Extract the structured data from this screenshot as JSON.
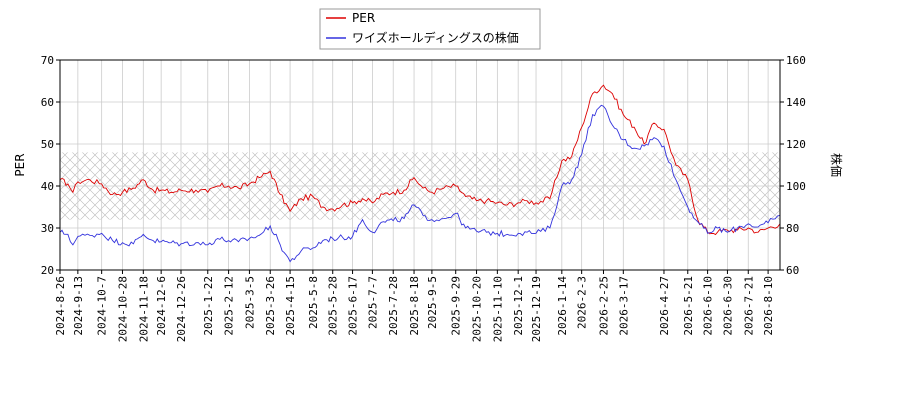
{
  "chart_data": {
    "type": "line",
    "legend": {
      "placement": "top-center",
      "entries": [
        {
          "name": "PER",
          "color": "#dd0000"
        },
        {
          "name": "ワイズホールディングスの株価",
          "color": "#3333dd"
        }
      ]
    },
    "ylabel_left": "PER",
    "ylabel_right": "株価",
    "ylim_left": [
      20,
      70
    ],
    "ylim_right": [
      60,
      160
    ],
    "yticks_left": [
      20,
      30,
      40,
      50,
      60,
      70
    ],
    "yticks_right": [
      60,
      80,
      100,
      120,
      140,
      160
    ],
    "grid": true,
    "band": {
      "axis": "left",
      "range": [
        32,
        48
      ],
      "pattern": "crosshatch"
    },
    "xlim": [
      "2024-08-26",
      "2026-08-22"
    ],
    "xticks": [
      "2024-8-26",
      "2024-9-13",
      "2024-10-7",
      "2024-10-28",
      "2024-11-18",
      "2024-12-6",
      "2024-12-26",
      "2025-1-22",
      "2025-2-12",
      "2025-3-5",
      "2025-3-26",
      "2025-4-15",
      "2025-5-8",
      "2025-5-28",
      "2025-6-17",
      "2025-7-7",
      "2025-7-28",
      "2025-8-18",
      "2025-9-5",
      "2025-9-29",
      "2025-10-20",
      "2025-11-10",
      "2025-12-1",
      "2025-12-19",
      "2026-1-14",
      "2026-2-3",
      "2026-2-25",
      "2026-3-17",
      "2026-4-27",
      "2026-5-21",
      "2026-6-10",
      "2026-6-30",
      "2026-7-21",
      "2026-8-10"
    ],
    "series": [
      {
        "name": "PER",
        "axis": "left",
        "color": "#dd0000",
        "x": [
          "2024-08-26",
          "2024-09-03",
          "2024-09-08",
          "2024-09-13",
          "2024-09-25",
          "2024-10-07",
          "2024-10-18",
          "2024-10-28",
          "2024-11-08",
          "2024-11-18",
          "2024-11-28",
          "2024-12-06",
          "2024-12-16",
          "2024-12-26",
          "2025-01-10",
          "2025-01-22",
          "2025-02-01",
          "2025-02-12",
          "2025-02-22",
          "2025-03-05",
          "2025-03-15",
          "2025-03-26",
          "2025-04-05",
          "2025-04-15",
          "2025-04-26",
          "2025-05-08",
          "2025-05-18",
          "2025-05-28",
          "2025-06-07",
          "2025-06-17",
          "2025-06-27",
          "2025-07-07",
          "2025-07-18",
          "2025-07-28",
          "2025-08-08",
          "2025-08-18",
          "2025-08-27",
          "2025-09-05",
          "2025-09-17",
          "2025-09-29",
          "2025-10-09",
          "2025-10-20",
          "2025-10-30",
          "2025-11-10",
          "2025-11-20",
          "2025-12-01",
          "2025-12-10",
          "2025-12-19",
          "2026-01-02",
          "2026-01-14",
          "2026-01-24",
          "2026-02-03",
          "2026-02-14",
          "2026-02-25",
          "2026-03-06",
          "2026-03-17",
          "2026-03-28",
          "2026-04-07",
          "2026-04-17",
          "2026-04-27",
          "2026-05-09",
          "2026-05-21",
          "2026-05-31",
          "2026-06-10",
          "2026-06-20",
          "2026-06-30",
          "2026-07-10",
          "2026-07-21",
          "2026-07-31",
          "2026-08-10",
          "2026-08-22"
        ],
        "values": [
          41.5,
          40.5,
          38.5,
          41.0,
          41.5,
          40.5,
          38.0,
          38.5,
          39.5,
          41.5,
          39.0,
          39.0,
          38.5,
          39.0,
          39.0,
          38.5,
          40.0,
          40.0,
          39.5,
          40.5,
          42.0,
          43.5,
          38.0,
          34.0,
          37.0,
          37.5,
          35.0,
          34.5,
          35.5,
          36.0,
          37.0,
          36.0,
          38.0,
          38.5,
          39.0,
          42.0,
          39.5,
          38.5,
          39.5,
          40.0,
          37.5,
          36.5,
          36.5,
          36.0,
          35.5,
          36.0,
          36.5,
          36.0,
          37.0,
          46.0,
          47.0,
          54.0,
          62.0,
          64.0,
          62.0,
          57.0,
          54.0,
          50.0,
          55.0,
          53.5,
          45.0,
          41.5,
          32.0,
          29.0,
          29.0,
          29.5,
          29.5,
          30.0,
          29.0,
          30.0,
          31.0
        ]
      },
      {
        "name": "ワイズホールディングスの株価",
        "axis": "right",
        "color": "#3333dd",
        "x": [
          "2024-08-26",
          "2024-09-03",
          "2024-09-08",
          "2024-09-13",
          "2024-09-25",
          "2024-10-07",
          "2024-10-18",
          "2024-10-28",
          "2024-11-08",
          "2024-11-18",
          "2024-11-28",
          "2024-12-06",
          "2024-12-16",
          "2024-12-26",
          "2025-01-10",
          "2025-01-22",
          "2025-02-01",
          "2025-02-12",
          "2025-02-22",
          "2025-03-05",
          "2025-03-15",
          "2025-03-26",
          "2025-04-05",
          "2025-04-15",
          "2025-04-26",
          "2025-05-08",
          "2025-05-18",
          "2025-05-28",
          "2025-06-07",
          "2025-06-17",
          "2025-06-27",
          "2025-07-07",
          "2025-07-18",
          "2025-07-28",
          "2025-08-08",
          "2025-08-18",
          "2025-08-27",
          "2025-09-05",
          "2025-09-17",
          "2025-09-29",
          "2025-10-09",
          "2025-10-20",
          "2025-10-30",
          "2025-11-10",
          "2025-11-20",
          "2025-12-01",
          "2025-12-10",
          "2025-12-19",
          "2026-01-02",
          "2026-01-14",
          "2026-01-24",
          "2026-02-03",
          "2026-02-14",
          "2026-02-25",
          "2026-03-06",
          "2026-03-17",
          "2026-03-28",
          "2026-04-07",
          "2026-04-17",
          "2026-04-27",
          "2026-05-09",
          "2026-05-21",
          "2026-05-31",
          "2026-06-10",
          "2026-06-20",
          "2026-06-30",
          "2026-07-10",
          "2026-07-21",
          "2026-07-31",
          "2026-08-10",
          "2026-08-22"
        ],
        "values": [
          78.0,
          77.0,
          72.0,
          76.0,
          76.5,
          77.5,
          74.0,
          73.0,
          72.5,
          77.0,
          74.0,
          73.5,
          73.0,
          72.5,
          73.0,
          72.0,
          75.0,
          74.0,
          73.5,
          75.0,
          76.5,
          81.0,
          72.0,
          64.0,
          69.0,
          70.5,
          74.0,
          75.0,
          75.5,
          76.0,
          84.0,
          78.0,
          83.0,
          83.5,
          84.5,
          91.0,
          86.0,
          84.0,
          84.5,
          87.0,
          80.0,
          78.5,
          78.0,
          77.5,
          77.0,
          77.5,
          78.0,
          77.5,
          80.0,
          100.0,
          103.0,
          115.0,
          134.0,
          138.0,
          129.0,
          122.0,
          118.0,
          119.0,
          123.0,
          119.0,
          103.0,
          90.0,
          83.0,
          77.5,
          80.0,
          78.0,
          80.0,
          82.0,
          80.5,
          82.5,
          86.0
        ]
      }
    ]
  }
}
